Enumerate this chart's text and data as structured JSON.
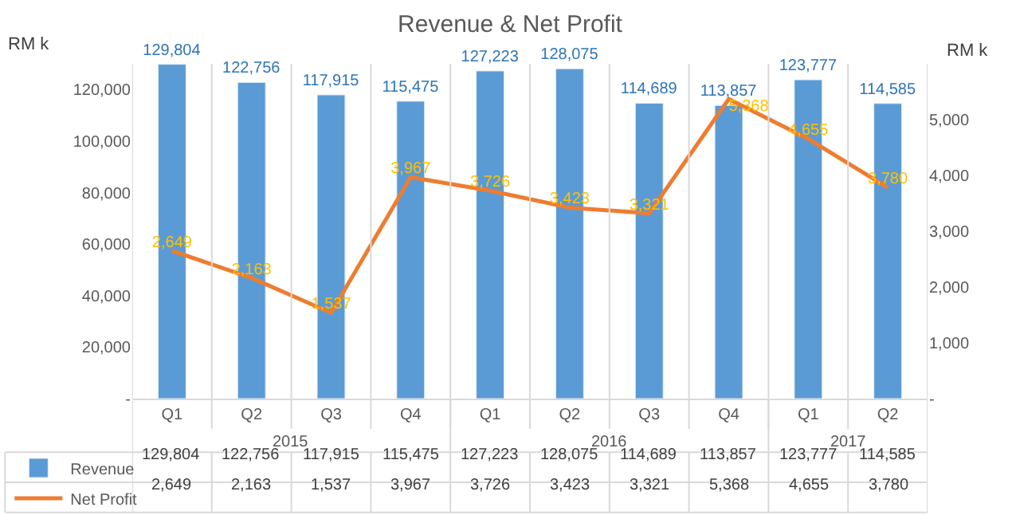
{
  "chart_data": {
    "type": "bar",
    "title": "Revenue & Net Profit",
    "categories": [
      "Q1",
      "Q2",
      "Q3",
      "Q4",
      "Q1",
      "Q2",
      "Q3",
      "Q4",
      "Q1",
      "Q2"
    ],
    "annotations": [
      "2015",
      "2016",
      "2017"
    ],
    "series": [
      {
        "name": "Revenue",
        "color": "#5b9bd5",
        "values": [
          129804,
          122756,
          117915,
          115475,
          127223,
          128075,
          114689,
          113857,
          123777,
          114585
        ],
        "value_labels": [
          "129,804",
          "122,756",
          "117,915",
          "115,475",
          "127,223",
          "128,075",
          "114,689",
          "113,857",
          "123,777",
          "114,585"
        ]
      },
      {
        "name": "Net Profit",
        "type": "line",
        "axis": "y2",
        "color": "#ed7d31",
        "values": [
          2649,
          2163,
          1537,
          3967,
          3726,
          3423,
          3321,
          5368,
          4655,
          3780
        ],
        "value_labels": [
          "2,649",
          "2,163",
          "1,537",
          "3,967",
          "3,726",
          "3,423",
          "3,321",
          "5,368",
          "4,655",
          "3,780"
        ]
      }
    ],
    "ylabel": "RM k",
    "y2label": "RM k",
    "ylim": [
      0,
      130000
    ],
    "yticks": [
      {
        "value": 0,
        "label": "-"
      },
      {
        "value": 20000,
        "label": "20,000"
      },
      {
        "value": 40000,
        "label": "40,000"
      },
      {
        "value": 60000,
        "label": "60,000"
      },
      {
        "value": 80000,
        "label": "80,000"
      },
      {
        "value": 100000,
        "label": "100,000"
      },
      {
        "value": 120000,
        "label": "120,000"
      }
    ],
    "y2lim": [
      0,
      6000
    ],
    "y2ticks": [
      {
        "value": 0,
        "label": "-"
      },
      {
        "value": 1000,
        "label": "1,000"
      },
      {
        "value": 2000,
        "label": "2,000"
      },
      {
        "value": 3000,
        "label": "3,000"
      },
      {
        "value": 4000,
        "label": "4,000"
      },
      {
        "value": 5000,
        "label": "5,000"
      }
    ],
    "grid": "x",
    "legend": "bottom",
    "marker": "none",
    "line_style": "solid"
  }
}
